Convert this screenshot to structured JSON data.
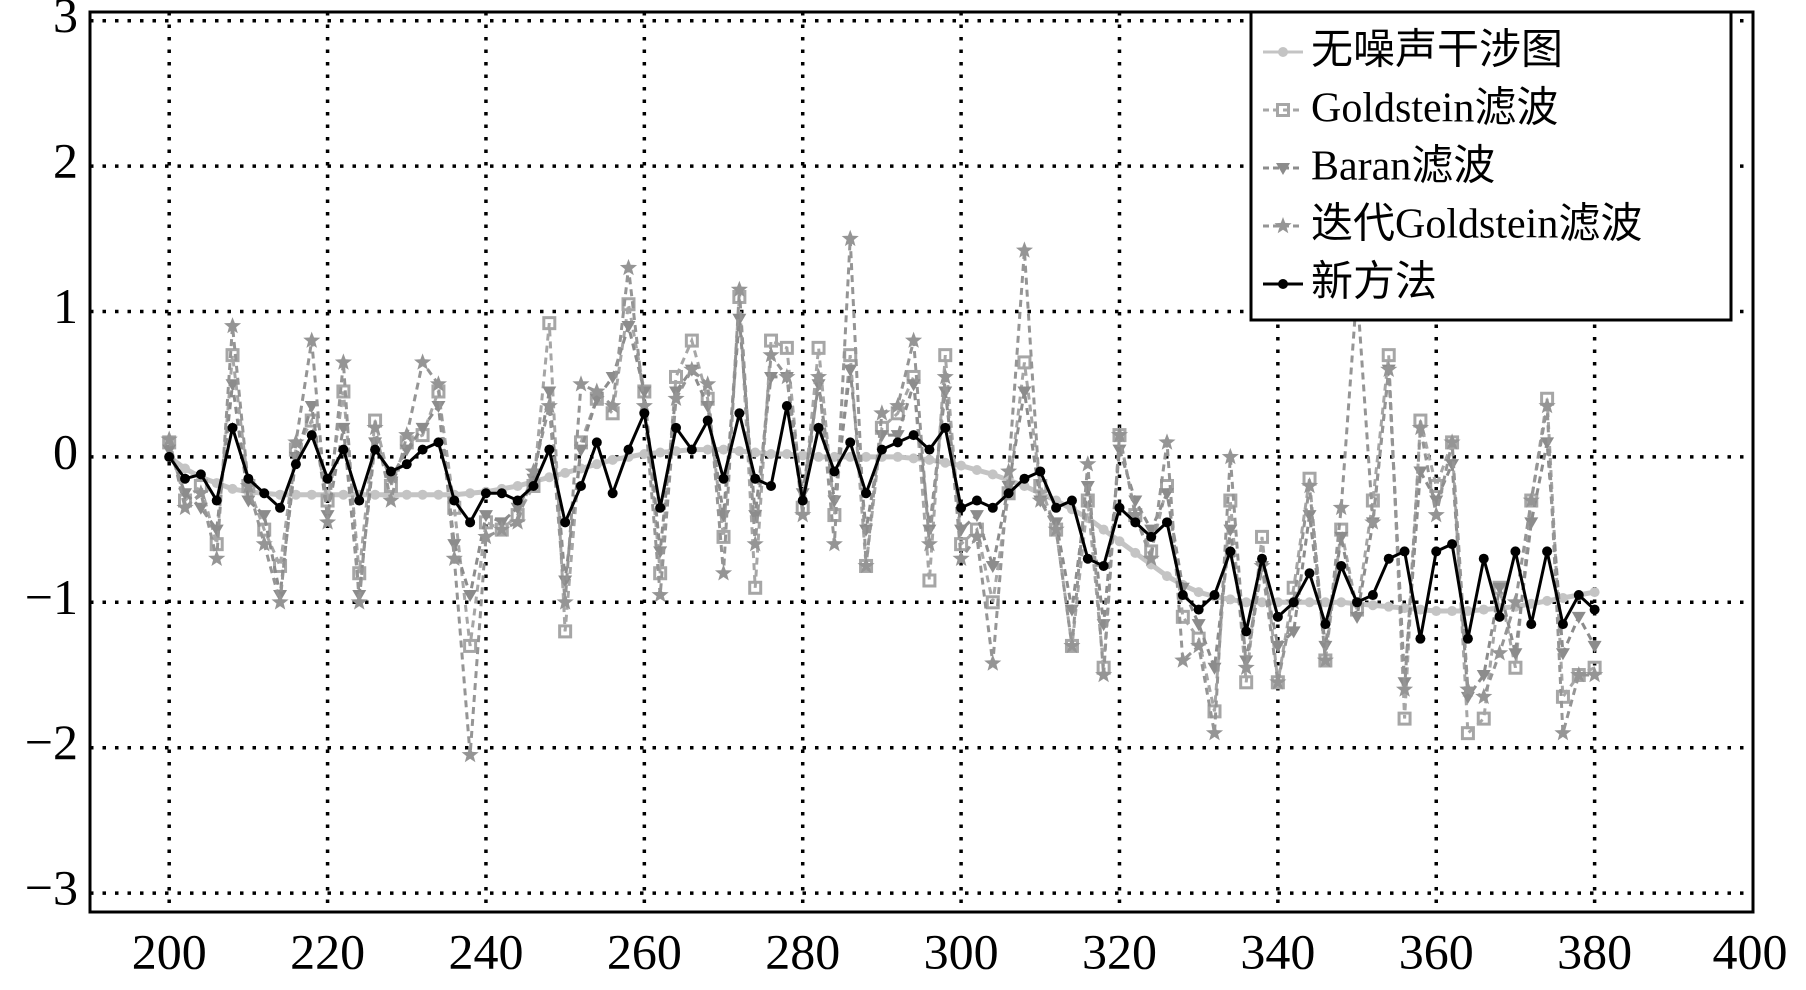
{
  "chart_data": {
    "type": "line",
    "x": [
      200,
      202,
      204,
      206,
      208,
      210,
      212,
      214,
      216,
      218,
      220,
      222,
      224,
      226,
      228,
      230,
      232,
      234,
      236,
      238,
      240,
      242,
      244,
      246,
      248,
      250,
      252,
      254,
      256,
      258,
      260,
      262,
      264,
      266,
      268,
      270,
      272,
      274,
      276,
      278,
      280,
      282,
      284,
      286,
      288,
      290,
      292,
      294,
      296,
      298,
      300,
      302,
      304,
      306,
      308,
      310,
      312,
      314,
      316,
      318,
      320,
      322,
      324,
      326,
      328,
      330,
      332,
      334,
      336,
      338,
      340,
      342,
      344,
      346,
      348,
      350,
      352,
      354,
      356,
      358,
      360,
      362,
      364,
      366,
      368,
      370,
      372,
      374,
      376,
      378,
      380
    ],
    "series": [
      {
        "name": "无噪声干涉图",
        "color": "#c4c4c4",
        "marker": "circle",
        "linestyle": "solid",
        "values": [
          0,
          -0.08,
          -0.14,
          -0.18,
          -0.22,
          -0.24,
          -0.25,
          -0.26,
          -0.26,
          -0.26,
          -0.26,
          -0.26,
          -0.26,
          -0.26,
          -0.26,
          -0.26,
          -0.26,
          -0.26,
          -0.26,
          -0.25,
          -0.24,
          -0.22,
          -0.2,
          -0.17,
          -0.14,
          -0.11,
          -0.08,
          -0.05,
          -0.02,
          0,
          0.02,
          0.03,
          0.04,
          0.05,
          0.05,
          0.05,
          0.04,
          0.03,
          0.02,
          0.02,
          0.01,
          0,
          0,
          0,
          0,
          0,
          0,
          -0.01,
          -0.02,
          -0.04,
          -0.06,
          -0.09,
          -0.12,
          -0.16,
          -0.2,
          -0.25,
          -0.3,
          -0.36,
          -0.42,
          -0.5,
          -0.58,
          -0.66,
          -0.74,
          -0.82,
          -0.88,
          -0.93,
          -0.96,
          -0.98,
          -1,
          -1,
          -1,
          -1,
          -1,
          -1,
          -1,
          -1.01,
          -1.02,
          -1.03,
          -1.04,
          -1.05,
          -1.06,
          -1.06,
          -1.06,
          -1.05,
          -1.04,
          -1.03,
          -1.01,
          -0.99,
          -0.97,
          -0.95,
          -0.93
        ]
      },
      {
        "name": "Goldstein滤波",
        "color": "#a6a6a6",
        "marker": "square",
        "linestyle": "dashed",
        "values": [
          0.1,
          -0.3,
          -0.2,
          -0.6,
          0.7,
          -0.2,
          -0.5,
          -0.75,
          0.05,
          0.25,
          -0.3,
          0.45,
          -0.8,
          0.25,
          -0.2,
          0.1,
          0.15,
          0.45,
          -0.35,
          -1.3,
          -0.45,
          -0.5,
          -0.4,
          -0.2,
          0.92,
          -1.2,
          0.1,
          0.4,
          0.3,
          1.05,
          0.45,
          -0.8,
          0.55,
          0.8,
          0.4,
          -0.55,
          1.1,
          -0.9,
          0.8,
          0.75,
          -0.35,
          0.75,
          -0.4,
          0.7,
          -0.75,
          0.2,
          0.3,
          0.55,
          -0.85,
          0.7,
          -0.6,
          -0.5,
          -1.0,
          -0.25,
          0.65,
          -0.2,
          -0.5,
          -1.3,
          -0.3,
          -1.45,
          0.15,
          -0.4,
          -0.65,
          -0.2,
          -1.1,
          -1.25,
          -1.75,
          -0.3,
          -1.55,
          -0.55,
          -1.55,
          -0.9,
          -0.15,
          -1.4,
          -0.5,
          -1.05,
          -0.3,
          0.7,
          -1.8,
          0.25,
          -0.2,
          0.1,
          -1.9,
          -1.8,
          -0.9,
          -1.45,
          -0.3,
          0.4,
          -1.65,
          -1.5,
          -1.45
        ]
      },
      {
        "name": "Baran滤波",
        "color": "#8c8c8c",
        "marker": "triangle-down",
        "linestyle": "dashed",
        "values": [
          0.05,
          -0.25,
          -0.35,
          -0.5,
          0.5,
          -0.3,
          -0.4,
          -0.95,
          0.0,
          0.35,
          -0.4,
          0.2,
          -0.95,
          0.1,
          -0.15,
          0.05,
          0.2,
          0.35,
          -0.6,
          -0.95,
          -0.4,
          -0.45,
          -0.35,
          -0.15,
          0.45,
          -0.85,
          0.05,
          0.4,
          0.55,
          0.9,
          0.45,
          -0.65,
          0.45,
          0.6,
          0.35,
          -0.4,
          0.95,
          -0.4,
          0.55,
          0.55,
          -0.25,
          0.5,
          -0.3,
          0.6,
          -0.5,
          0.15,
          0.15,
          0.5,
          -0.5,
          0.45,
          -0.5,
          -0.4,
          -0.75,
          -0.2,
          0.45,
          -0.3,
          -0.45,
          -1.05,
          -0.2,
          -1.15,
          0.05,
          -0.3,
          -0.5,
          -0.25,
          -0.9,
          -1.15,
          -1.45,
          -0.5,
          -1.4,
          -0.75,
          -1.3,
          -1.2,
          -0.4,
          -1.3,
          -0.55,
          -1.1,
          -0.45,
          0.6,
          -1.55,
          -0.1,
          -0.3,
          -0.05,
          -1.65,
          -1.5,
          -0.9,
          -1.35,
          -0.45,
          0.1,
          -1.35,
          -1.1,
          -1.3
        ]
      },
      {
        "name": "迭代Goldstein滤波",
        "color": "#959595",
        "marker": "star",
        "linestyle": "dashed",
        "values": [
          0.12,
          -0.35,
          -0.25,
          -0.7,
          0.9,
          -0.2,
          -0.6,
          -1.0,
          0.1,
          0.8,
          -0.45,
          0.65,
          -1.0,
          0.2,
          -0.3,
          0.15,
          0.65,
          0.5,
          -0.7,
          -2.05,
          -0.55,
          -0.5,
          -0.45,
          -0.1,
          0.35,
          -1.0,
          0.5,
          0.45,
          0.35,
          1.3,
          0.35,
          -0.95,
          0.4,
          0.6,
          0.5,
          -0.8,
          1.15,
          -0.6,
          0.7,
          0.55,
          -0.4,
          0.55,
          -0.6,
          1.5,
          -0.75,
          0.3,
          0.35,
          0.8,
          -0.6,
          0.55,
          -0.7,
          -0.55,
          -1.42,
          -0.1,
          1.42,
          -0.3,
          -0.5,
          -1.3,
          -0.05,
          -1.5,
          0.15,
          -0.4,
          -0.7,
          0.1,
          -1.4,
          -1.3,
          -1.9,
          0.0,
          -1.45,
          -0.75,
          -1.55,
          -1.0,
          -0.2,
          -1.4,
          -0.35,
          1.15,
          -0.45,
          0.6,
          -1.6,
          0.2,
          -0.4,
          0.1,
          -1.6,
          -1.65,
          -1.35,
          -1.0,
          -0.3,
          0.35,
          -1.9,
          -1.5,
          -1.5
        ]
      },
      {
        "name": "新方法",
        "color": "#000000",
        "marker": "circle",
        "linestyle": "solid",
        "values": [
          0,
          -0.15,
          -0.12,
          -0.3,
          0.2,
          -0.15,
          -0.25,
          -0.35,
          -0.05,
          0.15,
          -0.15,
          0.05,
          -0.3,
          0.05,
          -0.1,
          -0.05,
          0.05,
          0.1,
          -0.3,
          -0.45,
          -0.25,
          -0.25,
          -0.3,
          -0.2,
          0.05,
          -0.45,
          -0.2,
          0.1,
          -0.25,
          0.05,
          0.3,
          -0.35,
          0.2,
          0.05,
          0.25,
          -0.15,
          0.3,
          -0.15,
          -0.2,
          0.35,
          -0.3,
          0.2,
          -0.1,
          0.1,
          -0.25,
          0.05,
          0.1,
          0.15,
          0.05,
          0.2,
          -0.35,
          -0.3,
          -0.35,
          -0.25,
          -0.15,
          -0.1,
          -0.35,
          -0.3,
          -0.7,
          -0.75,
          -0.35,
          -0.45,
          -0.55,
          -0.45,
          -0.95,
          -1.05,
          -0.95,
          -0.65,
          -1.2,
          -0.7,
          -1.1,
          -1.0,
          -0.8,
          -1.15,
          -0.75,
          -1.0,
          -0.95,
          -0.7,
          -0.65,
          -1.25,
          -0.65,
          -0.6,
          -1.25,
          -0.7,
          -1.1,
          -0.65,
          -1.15,
          -0.65,
          -1.15,
          -0.95,
          -1.05
        ]
      }
    ],
    "xlim": [
      190,
      400
    ],
    "xticks": [
      200,
      220,
      240,
      260,
      280,
      300,
      320,
      340,
      360,
      380,
      400
    ],
    "ylim": [
      -3.13,
      3.06
    ],
    "yticks": [
      {
        "value": -3,
        "label": "−3"
      },
      {
        "value": -2,
        "label": "−2"
      },
      {
        "value": -1,
        "label": "−1"
      },
      0,
      1,
      2,
      3
    ],
    "grid": true,
    "legend": "upper-right"
  }
}
